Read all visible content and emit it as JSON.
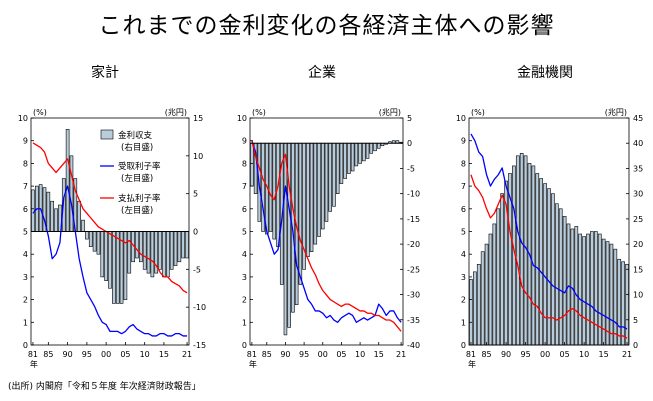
{
  "title": "これまでの金利変化の各経済主体への影響",
  "source": "(出所) 内閣府「令和５年度 年次経済財政報告」",
  "colors": {
    "bar_fill": "#b9ccdb",
    "bar_stroke": "#000000",
    "receive": "#0000ff",
    "pay": "#ff0000"
  },
  "chart_data": [
    {
      "type": "bar+line",
      "title": "家計",
      "left_unit": "(%)",
      "right_unit": "(兆円)",
      "year_label": "年",
      "x_ticks": [
        "81",
        "85",
        "90",
        "95",
        "00",
        "05",
        "10",
        "15",
        "21"
      ],
      "x_start": 1981,
      "x_end": 2021,
      "y_left": {
        "min": 0,
        "max": 10,
        "ticks": [
          "0",
          "1",
          "2",
          "3",
          "4",
          "5",
          "6",
          "7",
          "8",
          "9",
          "10"
        ]
      },
      "y_right": {
        "min": -15,
        "max": 15,
        "ticks": [
          "-15",
          "-10",
          "-5",
          "0",
          "5",
          "10",
          "15"
        ]
      },
      "bars": {
        "name": "金利収支",
        "note": "(右目盛)",
        "years": [
          1981,
          1982,
          1983,
          1984,
          1985,
          1986,
          1987,
          1988,
          1989,
          1990,
          1991,
          1992,
          1993,
          1994,
          1995,
          1996,
          1997,
          1998,
          1999,
          2000,
          2001,
          2002,
          2003,
          2004,
          2005,
          2006,
          2007,
          2008,
          2009,
          2010,
          2011,
          2012,
          2013,
          2014,
          2015,
          2016,
          2017,
          2018,
          2019,
          2020,
          2021
        ],
        "values": [
          5.5,
          6.0,
          6.2,
          5.8,
          5.2,
          4.0,
          3.0,
          3.5,
          7.0,
          13.5,
          10.0,
          7.0,
          4.0,
          1.5,
          -1.0,
          -2.0,
          -2.6,
          -3.0,
          -6.0,
          -6.5,
          -7.5,
          -9.5,
          -9.5,
          -9.5,
          -9.0,
          -5.5,
          -4.0,
          -3.5,
          -4.0,
          -5.0,
          -5.5,
          -6.0,
          -5.5,
          -5.0,
          -6.0,
          -6.0,
          -5.0,
          -4.5,
          -4.0,
          -3.5,
          -3.5
        ]
      },
      "series": [
        {
          "name": "受取利子率",
          "note": "(左目盛)",
          "years": [
            1981,
            1982,
            1983,
            1984,
            1985,
            1986,
            1987,
            1988,
            1989,
            1990,
            1991,
            1992,
            1993,
            1994,
            1995,
            1996,
            1997,
            1998,
            1999,
            2000,
            2001,
            2002,
            2003,
            2004,
            2005,
            2006,
            2007,
            2008,
            2009,
            2010,
            2011,
            2012,
            2013,
            2014,
            2015,
            2016,
            2017,
            2018,
            2019,
            2020,
            2021
          ],
          "values": [
            5.8,
            6.0,
            6.0,
            5.5,
            4.8,
            3.8,
            4.0,
            4.5,
            6.5,
            7.0,
            6.2,
            5.0,
            3.8,
            3.0,
            2.3,
            2.0,
            1.7,
            1.3,
            1.0,
            0.9,
            0.6,
            0.6,
            0.6,
            0.5,
            0.6,
            0.8,
            0.9,
            0.7,
            0.6,
            0.5,
            0.5,
            0.4,
            0.4,
            0.5,
            0.5,
            0.4,
            0.4,
            0.5,
            0.5,
            0.4,
            0.4
          ]
        },
        {
          "name": "支払利子率",
          "note": "(左目盛)",
          "years": [
            1981,
            1982,
            1983,
            1984,
            1985,
            1986,
            1987,
            1988,
            1989,
            1990,
            1991,
            1992,
            1993,
            1994,
            1995,
            1996,
            1997,
            1998,
            1999,
            2000,
            2001,
            2002,
            2003,
            2004,
            2005,
            2006,
            2007,
            2008,
            2009,
            2010,
            2011,
            2012,
            2013,
            2014,
            2015,
            2016,
            2017,
            2018,
            2019,
            2020,
            2021
          ],
          "values": [
            8.9,
            8.8,
            8.7,
            8.5,
            8.0,
            7.8,
            7.6,
            7.8,
            8.0,
            8.2,
            7.5,
            6.8,
            6.4,
            6.0,
            5.8,
            5.6,
            5.4,
            5.2,
            5.1,
            5.0,
            4.9,
            4.8,
            4.7,
            4.6,
            4.5,
            4.6,
            4.4,
            4.2,
            4.0,
            3.9,
            3.8,
            3.7,
            3.5,
            3.2,
            3.0,
            3.0,
            2.8,
            2.7,
            2.6,
            2.4,
            2.3
          ]
        }
      ]
    },
    {
      "type": "bar+line",
      "title": "企業",
      "left_unit": "(%)",
      "right_unit": "(兆円)",
      "year_label": "年",
      "x_ticks": [
        "81",
        "85",
        "90",
        "95",
        "00",
        "05",
        "10",
        "15",
        "21"
      ],
      "x_start": 1981,
      "x_end": 2021,
      "y_left": {
        "min": 0,
        "max": 10,
        "ticks": [
          "0",
          "1",
          "2",
          "3",
          "4",
          "5",
          "6",
          "7",
          "8",
          "9",
          "10"
        ]
      },
      "y_right": {
        "min": -40,
        "max": 5,
        "ticks": [
          "-40",
          "-35",
          "-30",
          "-25",
          "-20",
          "-15",
          "-10",
          "-5",
          "0",
          "5"
        ]
      },
      "bars": {
        "name": "金利収支",
        "note": "(右目盛)",
        "years": [
          1981,
          1982,
          1983,
          1984,
          1985,
          1986,
          1987,
          1988,
          1989,
          1990,
          1991,
          1992,
          1993,
          1994,
          1995,
          1996,
          1997,
          1998,
          1999,
          2000,
          2001,
          2002,
          2003,
          2004,
          2005,
          2006,
          2007,
          2008,
          2009,
          2010,
          2011,
          2012,
          2013,
          2014,
          2015,
          2016,
          2017,
          2018,
          2019,
          2020,
          2021
        ],
        "values": [
          -8.5,
          -10.0,
          -15.5,
          -17.5,
          -18.0,
          -17.5,
          -19.0,
          -20.5,
          -28.0,
          -38.0,
          -36.5,
          -33.5,
          -32.0,
          -28.0,
          -25.0,
          -22.5,
          -21.5,
          -20.0,
          -18.5,
          -17.0,
          -15.5,
          -13.5,
          -12.5,
          -10.0,
          -8.0,
          -7.0,
          -6.0,
          -5.5,
          -4.5,
          -4.0,
          -3.5,
          -3.0,
          -2.0,
          -1.5,
          -1.0,
          -0.5,
          -0.2,
          0.3,
          0.5,
          0.5,
          0.2
        ]
      },
      "series": [
        {
          "name": "受取利子率",
          "years": [
            1981,
            1982,
            1983,
            1984,
            1985,
            1986,
            1987,
            1988,
            1989,
            1990,
            1991,
            1992,
            1993,
            1994,
            1995,
            1996,
            1997,
            1998,
            1999,
            2000,
            2001,
            2002,
            2003,
            2004,
            2005,
            2006,
            2007,
            2008,
            2009,
            2010,
            2011,
            2012,
            2013,
            2014,
            2015,
            2016,
            2017,
            2018,
            2019,
            2020,
            2021
          ],
          "values": [
            9.0,
            8.5,
            7.0,
            6.0,
            5.0,
            4.5,
            4.0,
            4.2,
            5.5,
            7.0,
            6.0,
            5.0,
            3.5,
            3.0,
            2.5,
            2.0,
            1.8,
            1.5,
            1.5,
            1.4,
            1.2,
            1.3,
            1.1,
            1.0,
            1.2,
            1.3,
            1.4,
            1.3,
            1.0,
            1.1,
            1.2,
            1.1,
            1.2,
            1.3,
            1.8,
            1.6,
            1.3,
            1.5,
            1.5,
            1.2,
            1.0
          ]
        },
        {
          "name": "支払利子率",
          "years": [
            1981,
            1982,
            1983,
            1984,
            1985,
            1986,
            1987,
            1988,
            1989,
            1990,
            1991,
            1992,
            1993,
            1994,
            1995,
            1996,
            1997,
            1998,
            1999,
            2000,
            2001,
            2002,
            2003,
            2004,
            2005,
            2006,
            2007,
            2008,
            2009,
            2010,
            2011,
            2012,
            2013,
            2014,
            2015,
            2016,
            2017,
            2018,
            2019,
            2020,
            2021
          ],
          "values": [
            9.0,
            8.3,
            7.8,
            7.3,
            7.0,
            6.6,
            6.4,
            7.0,
            8.0,
            8.4,
            7.0,
            6.0,
            5.2,
            4.6,
            4.2,
            3.8,
            3.4,
            3.1,
            2.7,
            2.4,
            2.2,
            2.0,
            1.9,
            1.8,
            1.7,
            1.8,
            1.8,
            1.7,
            1.6,
            1.5,
            1.5,
            1.4,
            1.4,
            1.3,
            1.3,
            1.2,
            1.1,
            1.1,
            1.0,
            0.8,
            0.6
          ]
        }
      ]
    },
    {
      "type": "bar+line",
      "title": "金融機関",
      "left_unit": "(%)",
      "right_unit": "(兆円)",
      "year_label": "年",
      "x_ticks": [
        "81",
        "85",
        "90",
        "95",
        "00",
        "05",
        "10",
        "15",
        "21"
      ],
      "x_start": 1981,
      "x_end": 2021,
      "y_left": {
        "min": 0,
        "max": 10,
        "ticks": [
          "0",
          "1",
          "2",
          "3",
          "4",
          "5",
          "6",
          "7",
          "8",
          "9",
          "10"
        ]
      },
      "y_right": {
        "min": 0,
        "max": 45,
        "ticks": [
          "0",
          "5",
          "10",
          "15",
          "20",
          "25",
          "30",
          "35",
          "40",
          "45"
        ]
      },
      "bars": {
        "name": "金利収支",
        "note": "(右目盛)",
        "years": [
          1981,
          1982,
          1983,
          1984,
          1985,
          1986,
          1987,
          1988,
          1989,
          1990,
          1991,
          1992,
          1993,
          1994,
          1995,
          1996,
          1997,
          1998,
          1999,
          2000,
          2001,
          2002,
          2003,
          2004,
          2005,
          2006,
          2007,
          2008,
          2009,
          2010,
          2011,
          2012,
          2013,
          2014,
          2015,
          2016,
          2017,
          2018,
          2019,
          2020,
          2021
        ],
        "values": [
          13.0,
          14.5,
          16.0,
          18.5,
          20.0,
          22.0,
          24.0,
          27.0,
          30.0,
          32.5,
          34.0,
          35.5,
          37.5,
          38.0,
          37.5,
          36.0,
          35.5,
          34.0,
          33.0,
          32.0,
          31.0,
          30.0,
          28.0,
          27.0,
          25.5,
          24.0,
          23.0,
          23.5,
          22.0,
          21.5,
          22.0,
          22.5,
          22.5,
          22.0,
          21.0,
          20.5,
          20.0,
          19.0,
          17.0,
          16.5,
          16.0
        ]
      },
      "series": [
        {
          "name": "受取利子率",
          "years": [
            1981,
            1982,
            1983,
            1984,
            1985,
            1986,
            1987,
            1988,
            1989,
            1990,
            1991,
            1992,
            1993,
            1994,
            1995,
            1996,
            1997,
            1998,
            1999,
            2000,
            2001,
            2002,
            2003,
            2004,
            2005,
            2006,
            2007,
            2008,
            2009,
            2010,
            2011,
            2012,
            2013,
            2014,
            2015,
            2016,
            2017,
            2018,
            2019,
            2020,
            2021
          ],
          "values": [
            9.3,
            9.0,
            8.5,
            8.3,
            7.5,
            7.0,
            7.3,
            7.5,
            7.8,
            7.0,
            6.5,
            6.0,
            5.0,
            4.5,
            4.3,
            4.0,
            3.5,
            3.4,
            3.2,
            3.0,
            2.8,
            2.6,
            2.5,
            2.4,
            2.3,
            2.6,
            2.5,
            2.2,
            2.0,
            1.9,
            1.8,
            1.7,
            1.5,
            1.4,
            1.3,
            1.2,
            1.1,
            1.0,
            0.8,
            0.8,
            0.7
          ]
        },
        {
          "name": "支払利子率",
          "years": [
            1981,
            1982,
            1983,
            1984,
            1985,
            1986,
            1987,
            1988,
            1989,
            1990,
            1991,
            1992,
            1993,
            1994,
            1995,
            1996,
            1997,
            1998,
            1999,
            2000,
            2001,
            2002,
            2003,
            2004,
            2005,
            2006,
            2007,
            2008,
            2009,
            2010,
            2011,
            2012,
            2013,
            2014,
            2015,
            2016,
            2017,
            2018,
            2019,
            2020,
            2021
          ],
          "values": [
            7.5,
            7.0,
            6.8,
            6.5,
            6.0,
            5.6,
            5.8,
            6.2,
            6.6,
            6.2,
            5.0,
            4.2,
            3.5,
            2.6,
            2.3,
            2.1,
            1.8,
            1.7,
            1.4,
            1.2,
            1.2,
            1.2,
            1.1,
            1.2,
            1.3,
            1.5,
            1.6,
            1.5,
            1.3,
            1.2,
            1.1,
            1.0,
            0.9,
            0.8,
            0.7,
            0.6,
            0.5,
            0.5,
            0.4,
            0.4,
            0.3
          ]
        }
      ]
    }
  ]
}
